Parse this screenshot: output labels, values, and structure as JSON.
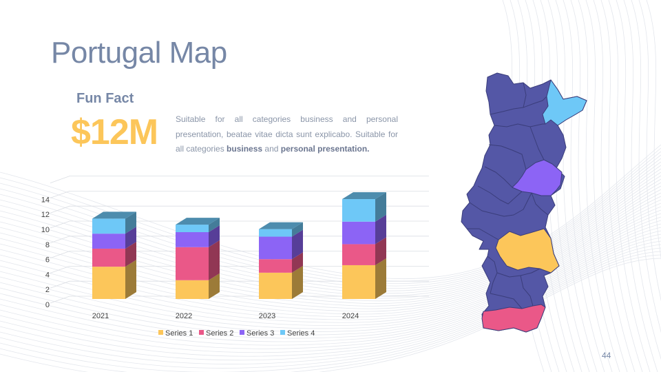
{
  "slide": {
    "title": "Portugal Map",
    "fun_fact_label": "Fun Fact",
    "big_value": "$12M",
    "body_part1": "Suitable for all categories business and personal presentation, beatae vitae dicta sunt explicabo. Suitable for all categories ",
    "body_bold1": "business",
    "body_mid": " and ",
    "body_bold2": "personal presentation.",
    "page_number": "44"
  },
  "colors": {
    "title": "#7687a6",
    "accent": "#fcc65a",
    "map_base": "#5457a6",
    "map_north_east": "#6ec8f7",
    "map_center": "#8c64f5",
    "map_lisbon_region": "#fcc65a",
    "map_south": "#ea5888"
  },
  "chart_data": {
    "type": "bar",
    "stacked": true,
    "style": "3d-stacked-column",
    "categories": [
      "2021",
      "2022",
      "2023",
      "2024"
    ],
    "series": [
      {
        "name": "Series 1",
        "color": "#fcc65a",
        "values": [
          4.3,
          2.5,
          3.5,
          4.5
        ]
      },
      {
        "name": "Series 2",
        "color": "#ea5888",
        "values": [
          2.4,
          4.4,
          1.8,
          2.8
        ]
      },
      {
        "name": "Series 3",
        "color": "#8c64f5",
        "values": [
          2.0,
          2.0,
          3.0,
          3.0
        ]
      },
      {
        "name": "Series 4",
        "color": "#6ec8f7",
        "values": [
          2.0,
          1.0,
          1.0,
          3.0
        ]
      }
    ],
    "y_ticks": [
      "0",
      "2",
      "4",
      "6",
      "8",
      "10",
      "12",
      "14"
    ],
    "ylim": [
      0,
      16
    ],
    "grid": true,
    "legend_position": "bottom"
  }
}
